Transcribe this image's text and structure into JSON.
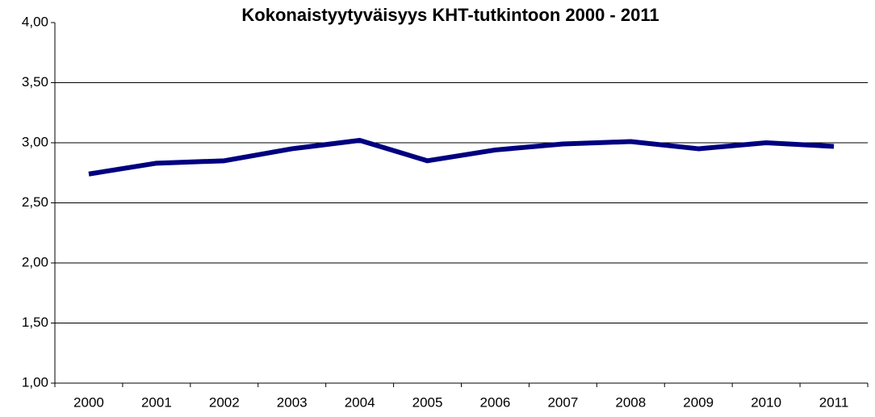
{
  "chart_data": {
    "type": "line",
    "title": "Kokonaistyytyväisyys KHT-tutkintoon 2000 - 2011",
    "categories": [
      "2000",
      "2001",
      "2002",
      "2003",
      "2004",
      "2005",
      "2006",
      "2007",
      "2008",
      "2009",
      "2010",
      "2011"
    ],
    "series": [
      {
        "name": null,
        "color": "#000080",
        "values": [
          2.74,
          2.83,
          2.85,
          2.95,
          3.02,
          2.85,
          2.94,
          2.99,
          3.01,
          2.95,
          3.0,
          2.97
        ]
      }
    ],
    "ylim": [
      1,
      4
    ],
    "yticks": [
      {
        "value": 1,
        "label": "1,00"
      },
      {
        "value": 1.5,
        "label": "1,50"
      },
      {
        "value": 2,
        "label": "2,00"
      },
      {
        "value": 2.5,
        "label": "2,50"
      },
      {
        "value": 3,
        "label": "3,00"
      },
      {
        "value": 3.5,
        "label": "3,50"
      },
      {
        "value": 4,
        "label": "4,00"
      }
    ],
    "grid": true
  }
}
